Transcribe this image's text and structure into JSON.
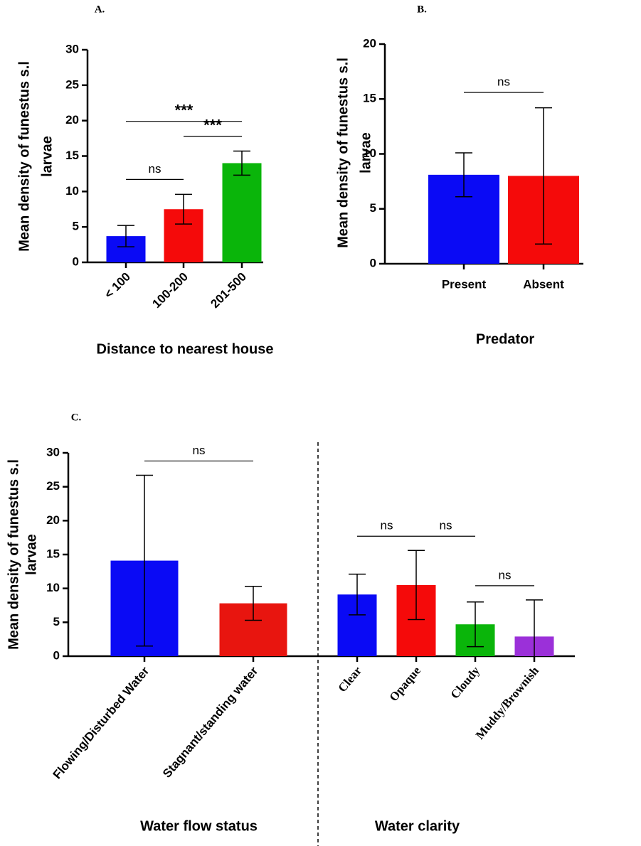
{
  "chart_data": [
    {
      "type": "bar",
      "panel": "A.",
      "ylabel": [
        "Mean density of funestus s.l",
        "larvae"
      ],
      "xlabel": "Distance to nearest house",
      "categories": [
        "< 100",
        "100-200",
        "201-500"
      ],
      "values": [
        3.7,
        7.5,
        14.0
      ],
      "errors": [
        1.5,
        2.1,
        1.7
      ],
      "colors": [
        "#0a0af5",
        "#f50a0a",
        "#0ab50a"
      ],
      "ylim": [
        0,
        30
      ],
      "yticks": [
        0,
        5,
        10,
        15,
        20,
        25,
        30
      ],
      "significance": [
        {
          "from": 0,
          "to": 1,
          "label": "ns"
        },
        {
          "from": 1,
          "to": 2,
          "label": "***"
        },
        {
          "from": 0,
          "to": 2,
          "label": "***"
        }
      ]
    },
    {
      "type": "bar",
      "panel": "B.",
      "ylabel": [
        "Mean density of funestus s.l",
        "larvae"
      ],
      "xlabel": "Predator",
      "categories": [
        "Present",
        "Absent"
      ],
      "values": [
        8.1,
        8.0
      ],
      "errors": [
        2.0,
        6.2
      ],
      "colors": [
        "#0a0af5",
        "#f50a0a"
      ],
      "ylim": [
        0,
        20
      ],
      "yticks": [
        0,
        5,
        10,
        15,
        20
      ],
      "significance": [
        {
          "from": 0,
          "to": 1,
          "label": "ns"
        }
      ]
    },
    {
      "type": "bar",
      "panel": "C.",
      "ylabel": [
        "Mean density of funestus s.l",
        "larvae"
      ],
      "groups": [
        {
          "name": "Water flow status",
          "from": 0,
          "to": 1
        },
        {
          "name": "Water clarity",
          "from": 2,
          "to": 5
        }
      ],
      "categories": [
        "Flowing/Disturbed Water",
        "Stagnant/standing water",
        "Clear",
        "Opaque",
        "Cloudy",
        "Muddy/Brownish"
      ],
      "values": [
        14.1,
        7.8,
        9.1,
        10.5,
        4.7,
        2.9
      ],
      "errors": [
        12.6,
        2.5,
        3.0,
        5.1,
        3.3,
        5.4
      ],
      "colors": [
        "#0a0af5",
        "#e8150f",
        "#0a0af5",
        "#f50a0a",
        "#0ab50a",
        "#9b30d9"
      ],
      "ylim": [
        0,
        30
      ],
      "yticks": [
        0,
        5,
        10,
        15,
        20,
        25,
        30
      ],
      "significance": [
        {
          "from": 0,
          "to": 1,
          "label": "ns"
        },
        {
          "from": 2,
          "to": 3,
          "label": "ns"
        },
        {
          "from": 3,
          "to": 4,
          "label": "ns"
        },
        {
          "from": 4,
          "to": 5,
          "label": "ns"
        }
      ]
    }
  ]
}
